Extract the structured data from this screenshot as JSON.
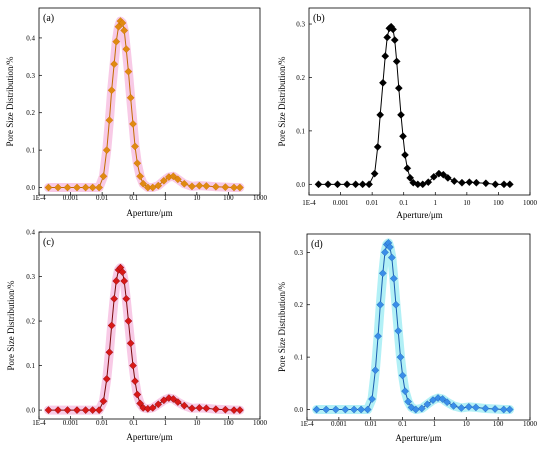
{
  "figure": {
    "panels": [
      {
        "label": "(a)",
        "marker": "diamond",
        "marker_color": "#e08a12",
        "marker_stroke": "#c26c00",
        "halo_color": "#f4a6d6",
        "xlabel": "Aperture/μm",
        "ylabel": "Pore Size Distribution/%",
        "ylim": [
          -0.02,
          0.48
        ],
        "yticks": [
          "0.0",
          "0.1",
          "0.2",
          "0.3",
          "0.4"
        ],
        "xticks": [
          "1E-4",
          "0.001",
          "0.01",
          "0.1",
          "1",
          "10",
          "100",
          "1000"
        ]
      },
      {
        "label": "(b)",
        "marker": "diamond",
        "marker_color": "#000000",
        "marker_stroke": "#000000",
        "halo_color": "",
        "xlabel": "Aperture/μm",
        "ylabel": "Pore Size Distribution/%",
        "ylim": [
          -0.02,
          0.33
        ],
        "yticks": [
          "0.0",
          "0.1",
          "0.2",
          "0.3"
        ],
        "xticks": [
          "1E-4",
          "0.001",
          "0.01",
          "0.1",
          "1",
          "10",
          "100",
          "1000"
        ]
      },
      {
        "label": "(c)",
        "marker": "diamond",
        "marker_color": "#d81818",
        "marker_stroke": "#7a0a0a",
        "halo_color": "#f4a6d6",
        "xlabel": "Aperture/μm",
        "ylabel": "Pore Size Distribution/%",
        "ylim": [
          -0.02,
          0.4
        ],
        "yticks": [
          "0.0",
          "0.1",
          "0.2",
          "0.3",
          "0.4"
        ],
        "xticks": [
          "1E-4",
          "0.001",
          "0.01",
          "0.1",
          "1",
          "10",
          "100",
          "1000"
        ]
      },
      {
        "label": "(d)",
        "marker": "diamond",
        "marker_color": "#3a8ee8",
        "marker_stroke": "#1a5cb0",
        "halo_color": "#7fe6f0",
        "xlabel": "Aperture/μm",
        "ylabel": "Pore Size Distribution/%",
        "ylim": [
          -0.02,
          0.335
        ],
        "yticks": [
          "0.0",
          "0.1",
          "0.2",
          "0.3"
        ],
        "xticks": [
          "1E-4",
          "0.001",
          "0.01",
          "0.1",
          "1",
          "10",
          "100",
          "1000"
        ]
      }
    ]
  },
  "chart_data": [
    {
      "type": "scatter",
      "title": "(a)",
      "xlabel": "Aperture/μm",
      "ylabel": "Pore Size Distribution/%",
      "x_scale": "log",
      "xlim": [
        0.0001,
        1000
      ],
      "ylim": [
        -0.02,
        0.48
      ],
      "series": [
        {
          "x": [
            0.0002,
            0.0004,
            0.0008,
            0.0016,
            0.003,
            0.005,
            0.008,
            0.011,
            0.014,
            0.017,
            0.02,
            0.024,
            0.028,
            0.033,
            0.038,
            0.044,
            0.05,
            0.058,
            0.068,
            0.08,
            0.095,
            0.11,
            0.13,
            0.16,
            0.2,
            0.28,
            0.4,
            0.6,
            0.9,
            1.3,
            1.8,
            2.5,
            4,
            7,
            12,
            20,
            40,
            80,
            150,
            230
          ],
          "y": [
            0.0,
            0.0,
            0.0,
            0.0,
            0.0,
            0.0,
            0.0,
            0.03,
            0.1,
            0.18,
            0.26,
            0.33,
            0.39,
            0.43,
            0.445,
            0.44,
            0.42,
            0.37,
            0.31,
            0.24,
            0.17,
            0.11,
            0.065,
            0.03,
            0.01,
            0.0,
            0.0,
            0.005,
            0.018,
            0.028,
            0.03,
            0.022,
            0.01,
            0.003,
            0.005,
            0.004,
            0.002,
            0.001,
            0.0,
            0.0
          ]
        }
      ]
    },
    {
      "type": "scatter",
      "title": "(b)",
      "xlabel": "Aperture/μm",
      "ylabel": "Pore Size Distribution/%",
      "x_scale": "log",
      "xlim": [
        0.0001,
        1000
      ],
      "ylim": [
        -0.02,
        0.33
      ],
      "series": [
        {
          "x": [
            0.0002,
            0.0004,
            0.0008,
            0.0016,
            0.003,
            0.005,
            0.008,
            0.012,
            0.015,
            0.018,
            0.022,
            0.026,
            0.03,
            0.035,
            0.04,
            0.046,
            0.052,
            0.06,
            0.07,
            0.082,
            0.095,
            0.11,
            0.13,
            0.16,
            0.2,
            0.28,
            0.4,
            0.6,
            0.9,
            1.3,
            1.8,
            2.5,
            4,
            7,
            12,
            20,
            40,
            80,
            150,
            230
          ],
          "y": [
            0.0,
            0.0,
            0.0,
            0.0,
            0.0,
            0.0,
            0.0,
            0.02,
            0.07,
            0.13,
            0.19,
            0.24,
            0.275,
            0.292,
            0.295,
            0.29,
            0.27,
            0.23,
            0.18,
            0.13,
            0.09,
            0.055,
            0.03,
            0.012,
            0.003,
            0.0,
            0.0,
            0.004,
            0.014,
            0.02,
            0.018,
            0.012,
            0.006,
            0.003,
            0.004,
            0.003,
            0.002,
            0.0,
            0.0,
            0.0
          ]
        }
      ]
    },
    {
      "type": "scatter",
      "title": "(c)",
      "xlabel": "Aperture/μm",
      "ylabel": "Pore Size Distribution/%",
      "x_scale": "log",
      "xlim": [
        0.0001,
        1000
      ],
      "ylim": [
        -0.02,
        0.4
      ],
      "series": [
        {
          "x": [
            0.0002,
            0.0004,
            0.0008,
            0.0016,
            0.003,
            0.005,
            0.008,
            0.011,
            0.014,
            0.017,
            0.02,
            0.024,
            0.028,
            0.033,
            0.038,
            0.044,
            0.05,
            0.058,
            0.068,
            0.08,
            0.095,
            0.11,
            0.13,
            0.16,
            0.2,
            0.28,
            0.4,
            0.6,
            0.9,
            1.3,
            1.8,
            2.5,
            4,
            7,
            12,
            20,
            40,
            80,
            150,
            230
          ],
          "y": [
            0.0,
            0.0,
            0.0,
            0.0,
            0.0,
            0.0,
            0.0,
            0.02,
            0.07,
            0.13,
            0.19,
            0.25,
            0.29,
            0.315,
            0.32,
            0.31,
            0.29,
            0.25,
            0.2,
            0.15,
            0.1,
            0.065,
            0.035,
            0.015,
            0.005,
            0.003,
            0.005,
            0.013,
            0.022,
            0.027,
            0.025,
            0.018,
            0.01,
            0.004,
            0.005,
            0.004,
            0.002,
            0.001,
            0.0,
            0.0
          ]
        }
      ]
    },
    {
      "type": "scatter",
      "title": "(d)",
      "xlabel": "Aperture/μm",
      "ylabel": "Pore Size Distribution/%",
      "x_scale": "log",
      "xlim": [
        0.0001,
        1000
      ],
      "ylim": [
        -0.02,
        0.335
      ],
      "series": [
        {
          "x": [
            0.0002,
            0.0004,
            0.0008,
            0.0016,
            0.003,
            0.005,
            0.008,
            0.011,
            0.014,
            0.017,
            0.02,
            0.024,
            0.028,
            0.032,
            0.036,
            0.04,
            0.046,
            0.053,
            0.062,
            0.073,
            0.086,
            0.1,
            0.12,
            0.15,
            0.19,
            0.26,
            0.4,
            0.6,
            0.9,
            1.3,
            1.8,
            2.5,
            4,
            7,
            12,
            20,
            40,
            80,
            150,
            230
          ],
          "y": [
            0.0,
            0.0,
            0.0,
            0.0,
            0.0,
            0.0,
            0.0,
            0.02,
            0.075,
            0.14,
            0.2,
            0.26,
            0.3,
            0.315,
            0.318,
            0.31,
            0.29,
            0.25,
            0.2,
            0.15,
            0.1,
            0.065,
            0.035,
            0.015,
            0.004,
            0.0,
            0.002,
            0.01,
            0.018,
            0.022,
            0.02,
            0.014,
            0.007,
            0.003,
            0.005,
            0.004,
            0.002,
            0.001,
            0.0,
            0.0
          ]
        }
      ]
    }
  ]
}
